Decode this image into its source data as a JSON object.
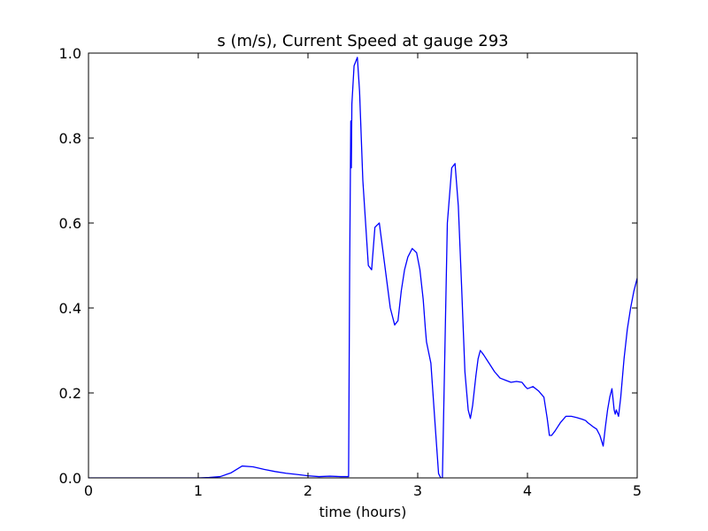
{
  "chart_data": {
    "type": "line",
    "title": "s (m/s), Current Speed at gauge 293",
    "xlabel": "time (hours)",
    "ylabel": "",
    "xlim": [
      0,
      5
    ],
    "ylim": [
      0,
      1.0
    ],
    "xticks": [
      "0",
      "1",
      "2",
      "3",
      "4",
      "5"
    ],
    "yticks": [
      "0.0",
      "0.2",
      "0.4",
      "0.6",
      "0.8",
      "1.0"
    ],
    "grid": false,
    "colors": {
      "series": "#0000ff",
      "zero_line": "#000000",
      "axes": "#000000"
    },
    "zero_line_style": "dashed",
    "series": [
      {
        "x": [
          0,
          1.0,
          1.1,
          1.2,
          1.3,
          1.4,
          1.5,
          1.6,
          1.7,
          1.8,
          1.9,
          2.0,
          2.1,
          2.2,
          2.3,
          2.37,
          2.38,
          2.39,
          2.395,
          2.4,
          2.42,
          2.45,
          2.47,
          2.5,
          2.55,
          2.58,
          2.61,
          2.65,
          2.7,
          2.75,
          2.79,
          2.82,
          2.85,
          2.88,
          2.91,
          2.95,
          2.99,
          3.02,
          3.05,
          3.07,
          3.08,
          3.12,
          3.16,
          3.19,
          3.21,
          3.225,
          3.24,
          3.27,
          3.31,
          3.34,
          3.37,
          3.4,
          3.43,
          3.46,
          3.48,
          3.5,
          3.53,
          3.55,
          3.57,
          3.6,
          3.65,
          3.7,
          3.75,
          3.8,
          3.85,
          3.9,
          3.95,
          3.98,
          4.0,
          4.05,
          4.1,
          4.15,
          4.18,
          4.2,
          4.22,
          4.25,
          4.3,
          4.35,
          4.4,
          4.45,
          4.5,
          4.53,
          4.55,
          4.6,
          4.63,
          4.66,
          4.69,
          4.71,
          4.73,
          4.75,
          4.77,
          4.79,
          4.8,
          4.81,
          4.83,
          4.85,
          4.88,
          4.91,
          4.94,
          4.97,
          5.0
        ],
        "y": [
          0,
          0,
          0.001,
          0.003,
          0.012,
          0.028,
          0.026,
          0.02,
          0.015,
          0.011,
          0.008,
          0.005,
          0.003,
          0.004,
          0.003,
          0.003,
          0.5,
          0.84,
          0.73,
          0.88,
          0.97,
          0.99,
          0.91,
          0.7,
          0.5,
          0.49,
          0.59,
          0.6,
          0.5,
          0.4,
          0.36,
          0.37,
          0.44,
          0.49,
          0.52,
          0.54,
          0.53,
          0.49,
          0.42,
          0.35,
          0.32,
          0.27,
          0.12,
          0.01,
          0.0,
          0.0,
          0.2,
          0.6,
          0.73,
          0.74,
          0.64,
          0.45,
          0.25,
          0.16,
          0.14,
          0.17,
          0.24,
          0.28,
          0.3,
          0.29,
          0.27,
          0.25,
          0.235,
          0.23,
          0.225,
          0.227,
          0.225,
          0.215,
          0.21,
          0.215,
          0.205,
          0.19,
          0.14,
          0.1,
          0.1,
          0.11,
          0.13,
          0.145,
          0.145,
          0.142,
          0.138,
          0.135,
          0.13,
          0.12,
          0.115,
          0.1,
          0.075,
          0.12,
          0.16,
          0.19,
          0.21,
          0.16,
          0.15,
          0.16,
          0.145,
          0.19,
          0.28,
          0.35,
          0.4,
          0.44,
          0.47
        ]
      }
    ]
  }
}
